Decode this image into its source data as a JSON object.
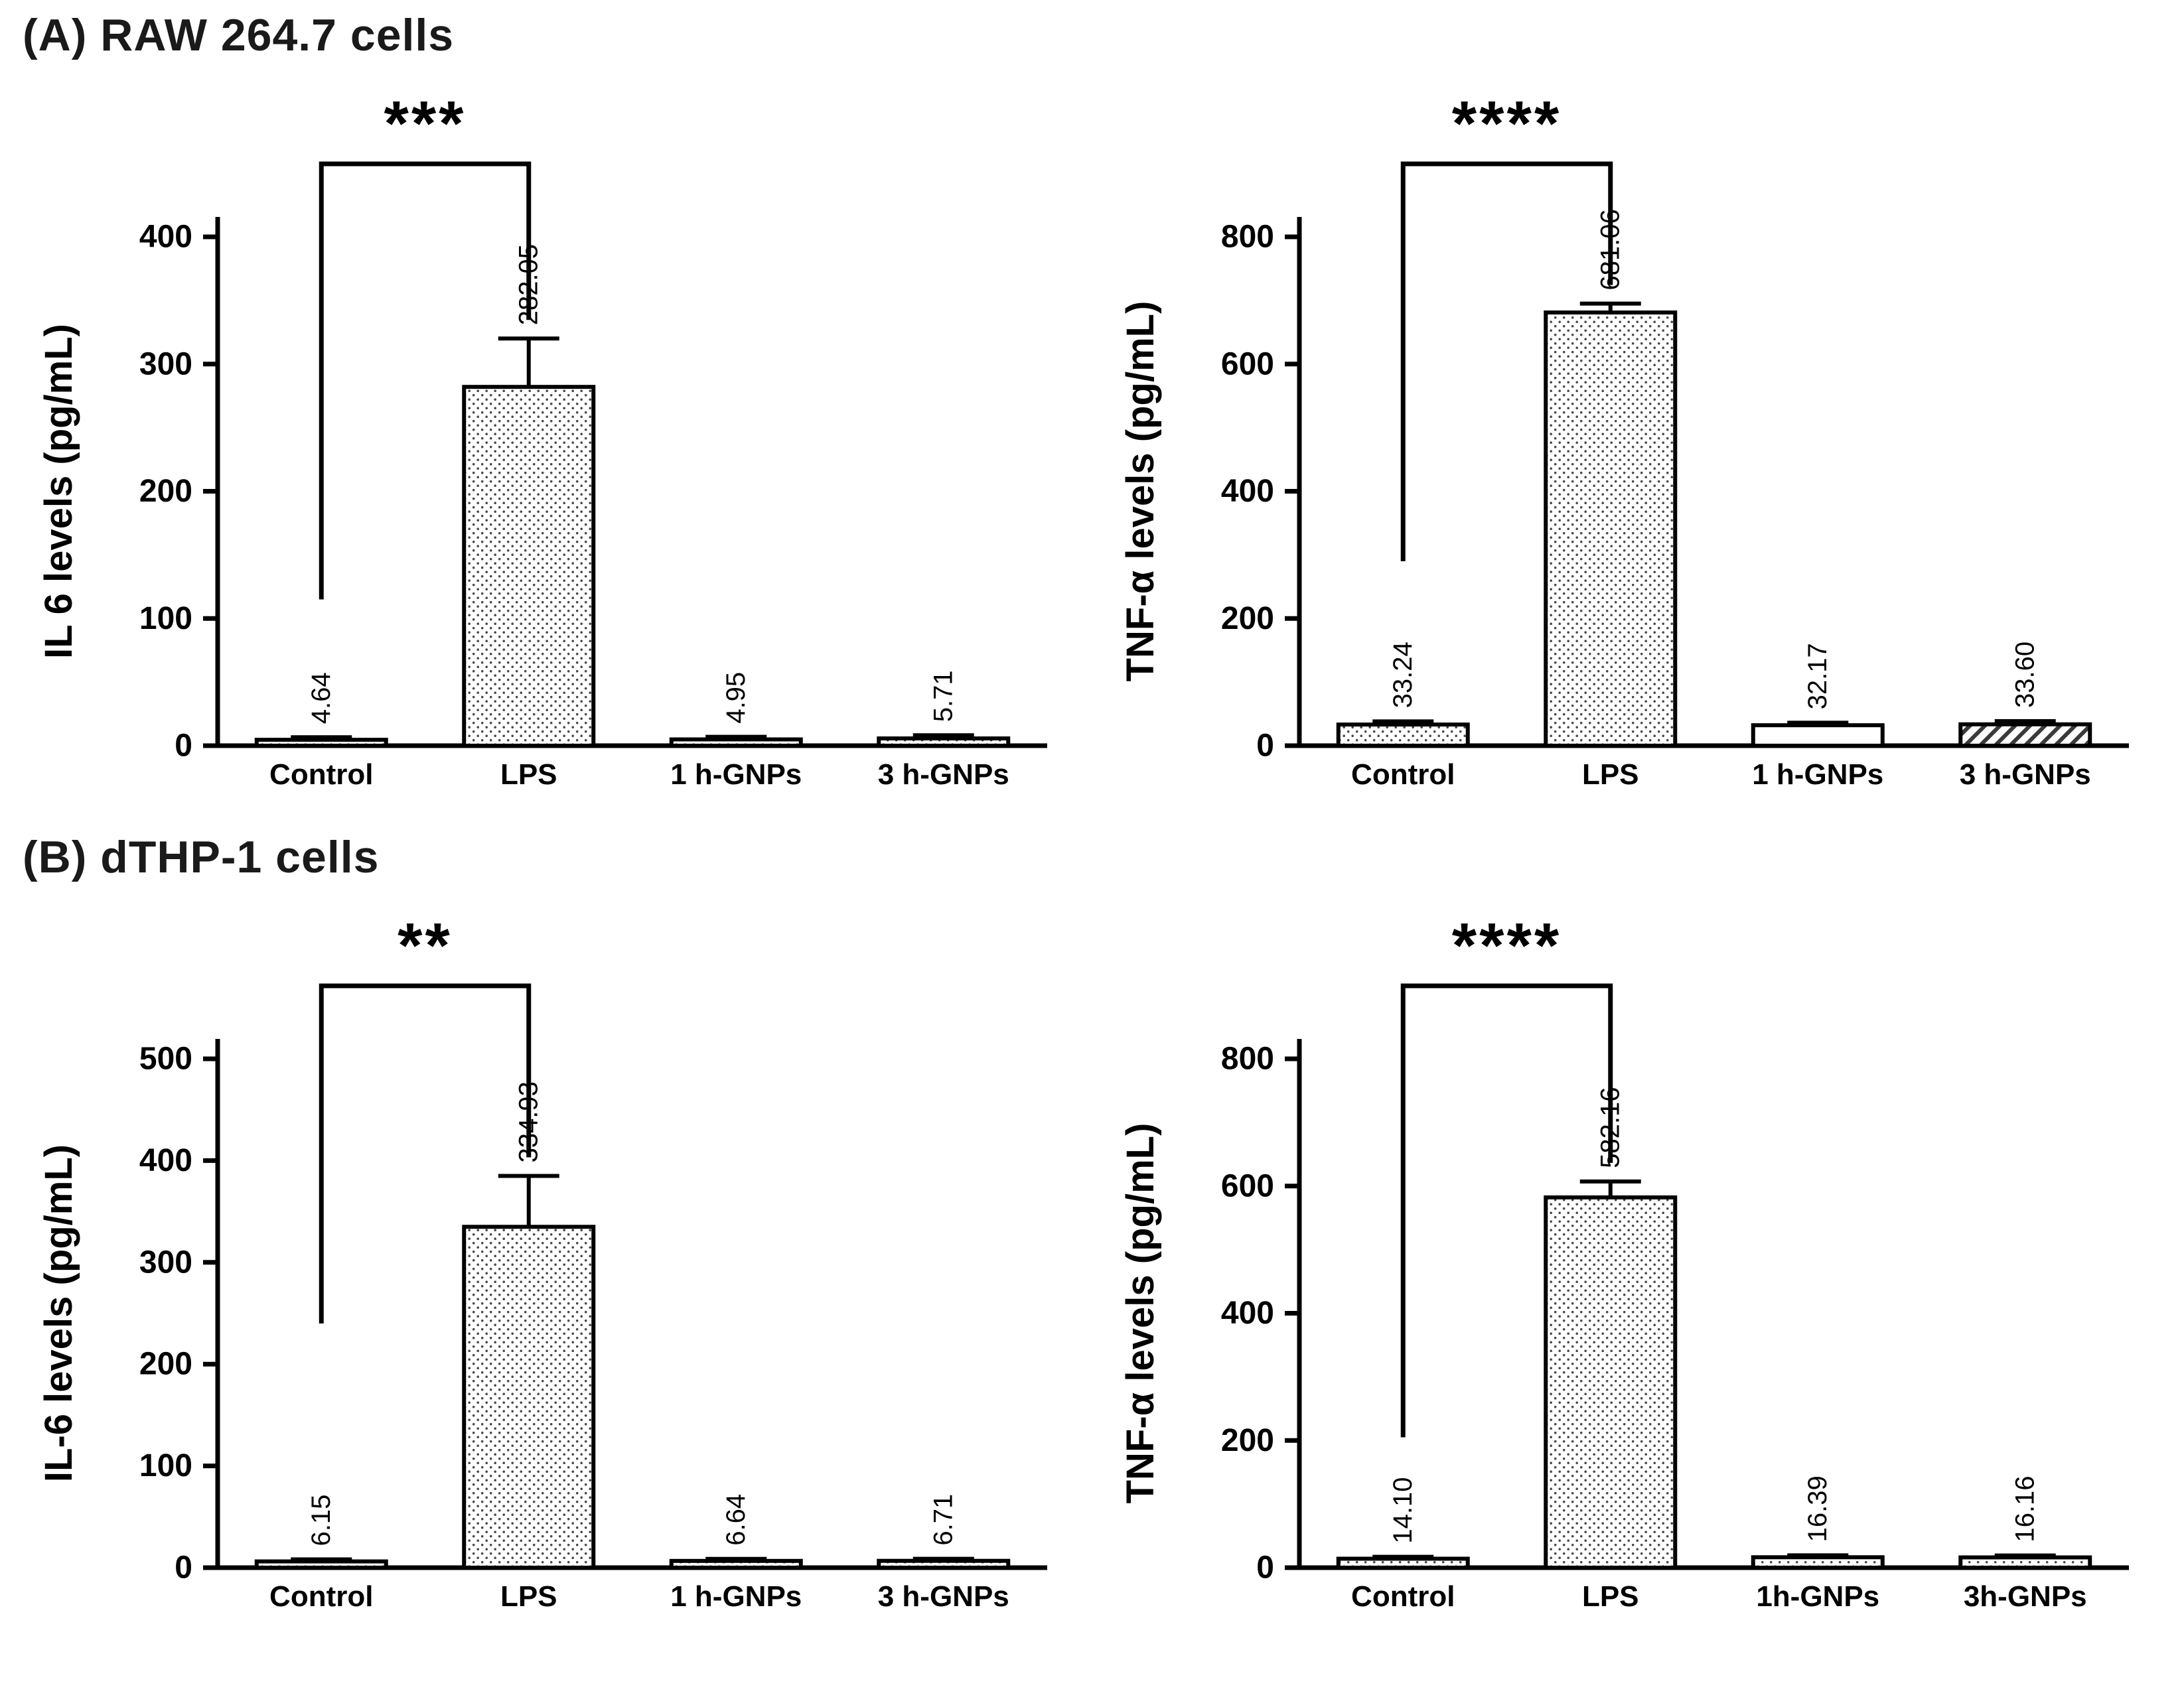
{
  "figure": {
    "section_a_title": "(A) RAW 264.7 cells",
    "section_b_title": "(B) dTHP-1 cells"
  },
  "chart_data": [
    {
      "type": "bar",
      "section": "A",
      "title": "",
      "xlabel": "",
      "ylabel": "IL 6 levels (pg/mL)",
      "categories": [
        "Control",
        "LPS",
        "1 h-GNPs",
        "3 h-GNPs"
      ],
      "values": [
        4.64,
        282.05,
        4.95,
        5.71
      ],
      "value_labels": [
        "4.64",
        "282.05",
        "4.95",
        "5.71"
      ],
      "errors": [
        2,
        38,
        2,
        2.5
      ],
      "ylim": [
        0,
        400
      ],
      "yticks": [
        0,
        100,
        200,
        300,
        400
      ],
      "grid": false,
      "legend": "none",
      "bar_patterns": [
        "dots",
        "dots",
        "dots",
        "dots"
      ],
      "significance": {
        "label": "***",
        "from": "Control",
        "to": "LPS",
        "left_drop_y": 115
      }
    },
    {
      "type": "bar",
      "section": "A",
      "title": "",
      "xlabel": "",
      "ylabel": "TNF-α levels (pg/mL)",
      "categories": [
        "Control",
        "LPS",
        "1 h-GNPs",
        "3 h-GNPs"
      ],
      "values": [
        33.24,
        681.06,
        32.17,
        33.6
      ],
      "value_labels": [
        "33.24",
        "681.06",
        "32.17",
        "33.60"
      ],
      "errors": [
        5,
        14,
        4,
        5
      ],
      "ylim": [
        0,
        800
      ],
      "yticks": [
        0,
        200,
        400,
        600,
        800
      ],
      "grid": false,
      "legend": "none",
      "bar_patterns": [
        "dots",
        "dots",
        "white",
        "hatch"
      ],
      "significance": {
        "label": "****",
        "from": "Control",
        "to": "LPS",
        "left_drop_y": 290
      }
    },
    {
      "type": "bar",
      "section": "B",
      "title": "",
      "xlabel": "",
      "ylabel": "IL-6 levels (pg/mL)",
      "categories": [
        "Control",
        "LPS",
        "1 h-GNPs",
        "3 h-GNPs"
      ],
      "values": [
        6.15,
        334.93,
        6.64,
        6.71
      ],
      "value_labels": [
        "6.15",
        "334.93",
        "6.64",
        "6.71"
      ],
      "errors": [
        2,
        50,
        2,
        2
      ],
      "ylim": [
        0,
        500
      ],
      "yticks": [
        0,
        100,
        200,
        300,
        400,
        500
      ],
      "grid": false,
      "legend": "none",
      "bar_patterns": [
        "dots",
        "dots",
        "dots",
        "dots"
      ],
      "significance": {
        "label": "**",
        "from": "Control",
        "to": "LPS",
        "left_drop_y": 240
      }
    },
    {
      "type": "bar",
      "section": "B",
      "title": "",
      "xlabel": "",
      "ylabel": "TNF-α levels (pg/mL)",
      "categories": [
        "Control",
        "LPS",
        "1h-GNPs",
        "3h-GNPs"
      ],
      "values": [
        14.1,
        582.16,
        16.39,
        16.16
      ],
      "value_labels": [
        "14.10",
        "582.16",
        "16.39",
        "16.16"
      ],
      "errors": [
        3,
        25,
        3,
        3
      ],
      "ylim": [
        0,
        800
      ],
      "yticks": [
        0,
        200,
        400,
        600,
        800
      ],
      "grid": false,
      "legend": "none",
      "bar_patterns": [
        "dots",
        "dots",
        "dots",
        "dots"
      ],
      "significance": {
        "label": "****",
        "from": "Control",
        "to": "LPS",
        "left_drop_y": 205
      }
    }
  ]
}
